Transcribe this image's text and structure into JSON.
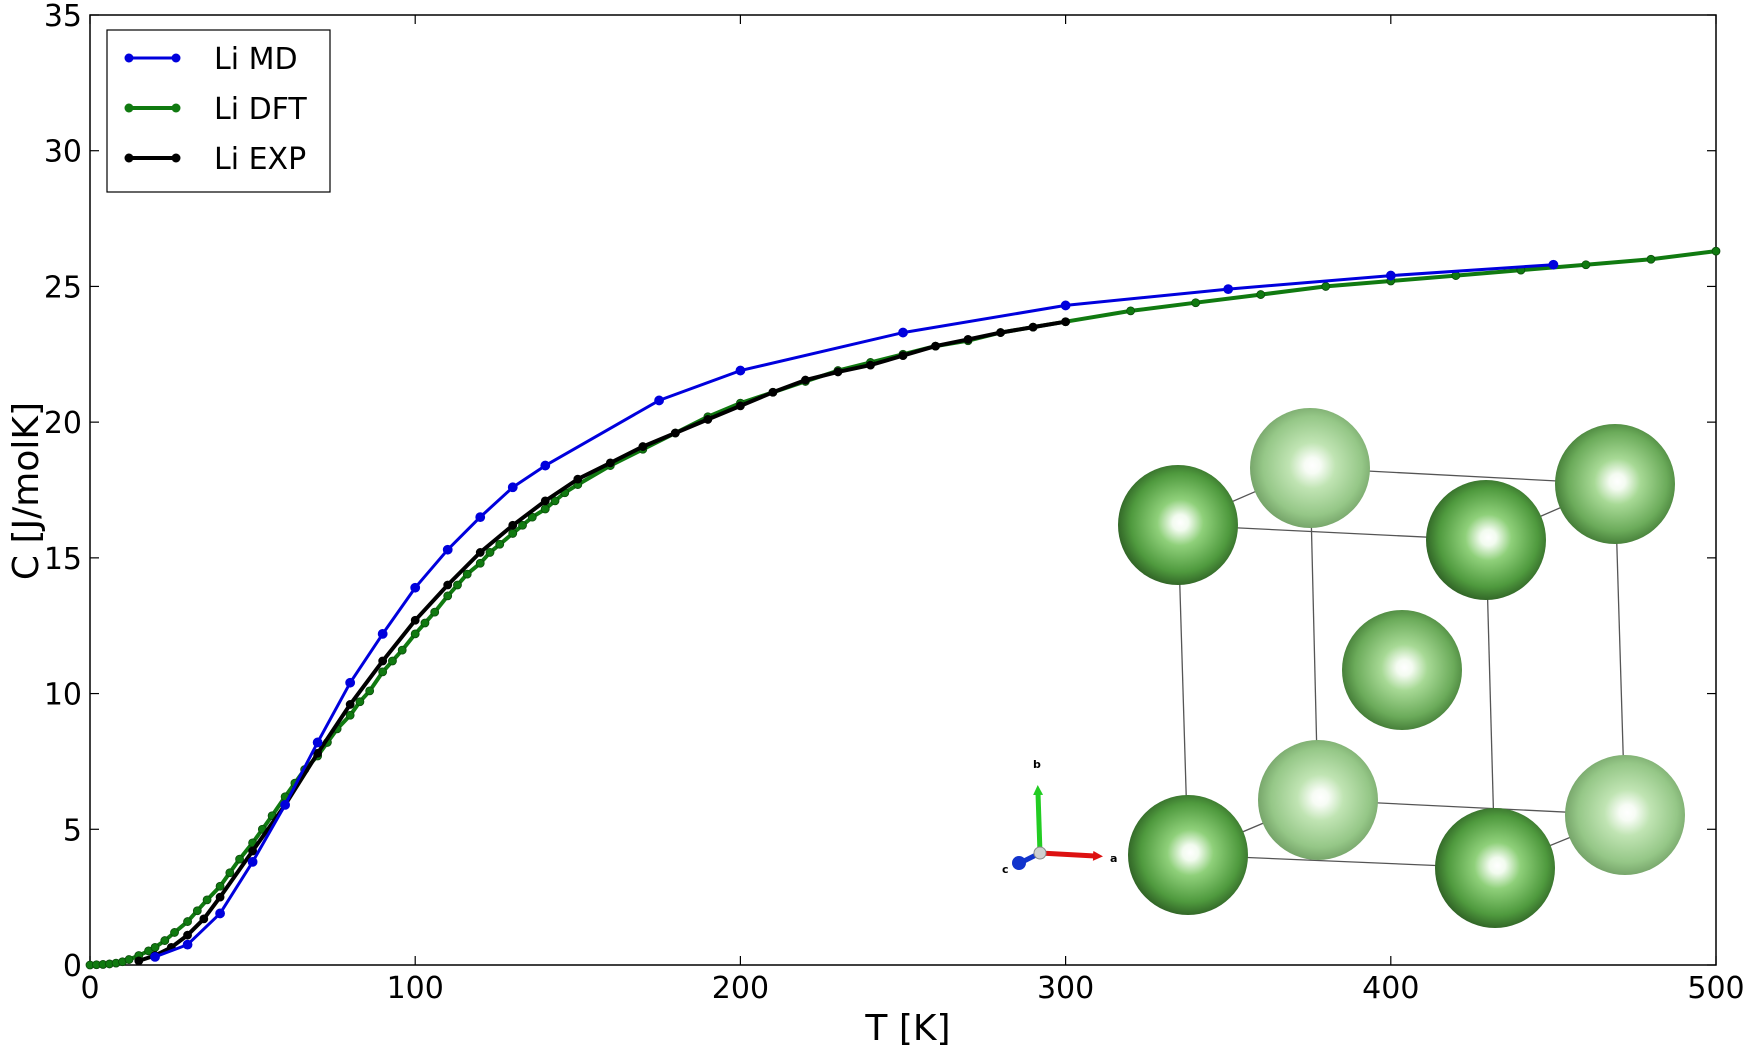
{
  "chart_data": {
    "type": "line",
    "title": "",
    "xlabel": "T [K]",
    "ylabel": "C [J/molK]",
    "xlim": [
      0,
      500
    ],
    "ylim": [
      0,
      35
    ],
    "xticks": [
      0,
      100,
      200,
      300,
      400,
      500
    ],
    "yticks": [
      0,
      5,
      10,
      15,
      20,
      25,
      30,
      35
    ],
    "grid": false,
    "legend": "top-left",
    "series": [
      {
        "name": "Li MD",
        "color": "#0000dd",
        "x": [
          20,
          30,
          40,
          50,
          60,
          70,
          80,
          90,
          100,
          110,
          120,
          130,
          140,
          175,
          200,
          250,
          300,
          350,
          400,
          450
        ],
        "y": [
          0.3,
          0.75,
          1.9,
          3.8,
          5.9,
          8.2,
          10.4,
          12.2,
          13.9,
          15.3,
          16.5,
          17.6,
          18.4,
          20.8,
          21.9,
          23.3,
          24.3,
          24.9,
          25.4,
          25.8
        ]
      },
      {
        "name": "Li DFT",
        "color": "#107a10",
        "x": [
          0,
          2,
          4,
          6,
          8,
          10,
          12,
          15,
          18,
          20,
          23,
          26,
          30,
          33,
          36,
          40,
          43,
          46,
          50,
          53,
          56,
          60,
          63,
          66,
          70,
          73,
          76,
          80,
          83,
          86,
          90,
          93,
          96,
          100,
          103,
          106,
          110,
          113,
          116,
          120,
          123,
          126,
          130,
          133,
          136,
          140,
          143,
          146,
          150,
          160,
          170,
          180,
          190,
          200,
          210,
          220,
          230,
          240,
          250,
          260,
          270,
          280,
          290,
          300,
          320,
          340,
          360,
          380,
          400,
          420,
          440,
          460,
          480,
          500
        ],
        "y": [
          0.0,
          0.01,
          0.02,
          0.04,
          0.07,
          0.12,
          0.2,
          0.35,
          0.52,
          0.65,
          0.9,
          1.2,
          1.6,
          2.0,
          2.4,
          2.9,
          3.4,
          3.9,
          4.5,
          5.0,
          5.5,
          6.2,
          6.7,
          7.2,
          7.7,
          8.2,
          8.7,
          9.2,
          9.7,
          10.1,
          10.8,
          11.2,
          11.6,
          12.2,
          12.6,
          13.0,
          13.6,
          14.0,
          14.4,
          14.8,
          15.2,
          15.5,
          15.9,
          16.2,
          16.5,
          16.8,
          17.1,
          17.4,
          17.7,
          18.4,
          19.0,
          19.6,
          20.2,
          20.7,
          21.1,
          21.5,
          21.9,
          22.2,
          22.5,
          22.8,
          23.0,
          23.3,
          23.5,
          23.7,
          24.1,
          24.4,
          24.7,
          25.0,
          25.2,
          25.4,
          25.6,
          25.8,
          26.0,
          26.3
        ]
      },
      {
        "name": "Li EXP",
        "color": "#000000",
        "x": [
          15,
          20,
          25,
          30,
          35,
          40,
          50,
          60,
          70,
          80,
          90,
          100,
          110,
          120,
          130,
          140,
          150,
          160,
          170,
          180,
          190,
          200,
          210,
          220,
          230,
          240,
          250,
          260,
          270,
          280,
          290,
          300
        ],
        "y": [
          0.15,
          0.35,
          0.65,
          1.1,
          1.7,
          2.5,
          4.2,
          5.9,
          7.8,
          9.6,
          11.2,
          12.7,
          14.0,
          15.2,
          16.2,
          17.1,
          17.9,
          18.5,
          19.1,
          19.6,
          20.1,
          20.6,
          21.1,
          21.55,
          21.85,
          22.1,
          22.45,
          22.8,
          23.05,
          23.3,
          23.5,
          23.7
        ]
      }
    ]
  },
  "inset": {
    "axis_labels": {
      "a": "a",
      "b": "b",
      "c": "c"
    },
    "atom_color": "#5ea84a"
  }
}
